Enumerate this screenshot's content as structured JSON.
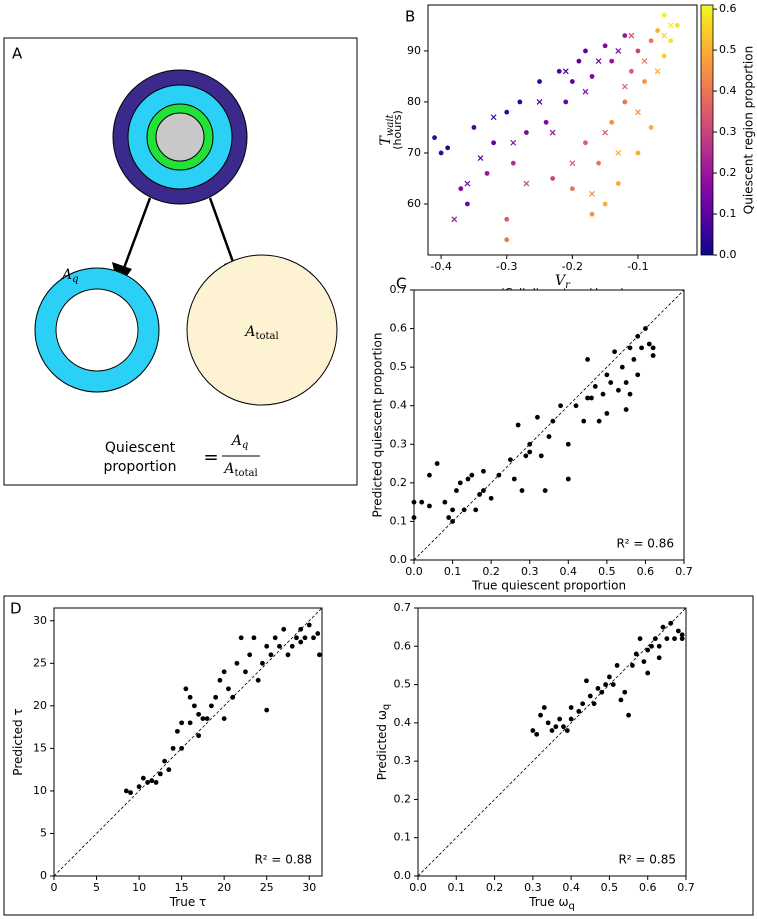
{
  "diagram": {
    "panel": "A",
    "aq": {
      "text": "A",
      "sub": "q"
    },
    "atotal": {
      "text": "A",
      "sub": "total"
    },
    "formula": {
      "line1": "Quiescent",
      "line2": "proportion",
      "equals": "=",
      "numerator": {
        "text": "A",
        "sub": "q"
      },
      "denominator": {
        "text": "A",
        "sub": "total"
      }
    }
  },
  "chart_data": [
    {
      "type": "scatter",
      "panel": "B",
      "xlabel": [
        {
          "text": "V",
          "sub": "r"
        },
        "(Cell diameters / hour)"
      ],
      "ylabel": [
        {
          "text": "T",
          "sub": "wait"
        },
        "(hours)"
      ],
      "xlim": [
        -0.42,
        -0.01
      ],
      "ylim": [
        50,
        99
      ],
      "xticks": [
        -0.4,
        -0.3,
        -0.2,
        -0.1
      ],
      "yticks": [
        60,
        70,
        80,
        90
      ],
      "colorbar": {
        "label": "Quiescent region proportion",
        "cmap": "plasma",
        "lim": [
          0,
          0.61
        ],
        "ticks": [
          {
            "value": 0,
            "label": "0.0"
          },
          0.1,
          0.2,
          0.3,
          0.4,
          0.5,
          0.6
        ]
      },
      "series": [
        {
          "marker": "o",
          "x": [
            -0.41,
            -0.4,
            -0.39,
            -0.37,
            -0.36,
            -0.35,
            -0.33,
            -0.32,
            -0.3,
            -0.3,
            -0.3,
            -0.29,
            -0.28,
            -0.27,
            -0.25,
            -0.24,
            -0.23,
            -0.22,
            -0.21,
            -0.2,
            -0.2,
            -0.19,
            -0.18,
            -0.17,
            -0.17,
            -0.16,
            -0.15,
            -0.15,
            -0.14,
            -0.13,
            -0.12,
            -0.12,
            -0.11,
            -0.1,
            -0.1,
            -0.09,
            -0.08,
            -0.08,
            -0.07,
            -0.06,
            -0.05,
            -0.04,
            -0.06,
            -0.14,
            -0.18
          ],
          "values": [
            73,
            70,
            71,
            63,
            60,
            75,
            66,
            72,
            78,
            57,
            53,
            68,
            80,
            74,
            84,
            76,
            65,
            86,
            80,
            84,
            63,
            88,
            90,
            58,
            85,
            68,
            91,
            60,
            88,
            64,
            93,
            80,
            86,
            70,
            90,
            84,
            92,
            75,
            94,
            97,
            92,
            95,
            89,
            76,
            72
          ],
          "color_values": [
            0.05,
            0.05,
            0.03,
            0.15,
            0.12,
            0.08,
            0.2,
            0.1,
            0.05,
            0.35,
            0.4,
            0.25,
            0.05,
            0.15,
            0.05,
            0.15,
            0.3,
            0.08,
            0.12,
            0.1,
            0.4,
            0.1,
            0.1,
            0.45,
            0.15,
            0.4,
            0.15,
            0.5,
            0.2,
            0.5,
            0.2,
            0.4,
            0.35,
            0.5,
            0.3,
            0.45,
            0.4,
            0.5,
            0.5,
            0.6,
            0.58,
            0.58,
            0.55,
            0.45,
            0.35
          ]
        },
        {
          "marker": "x",
          "x": [
            -0.38,
            -0.36,
            -0.34,
            -0.32,
            -0.29,
            -0.27,
            -0.25,
            -0.23,
            -0.21,
            -0.2,
            -0.18,
            -0.16,
            -0.15,
            -0.13,
            -0.12,
            -0.11,
            -0.1,
            -0.09,
            -0.07,
            -0.06,
            -0.05,
            -0.17,
            -0.13
          ],
          "values": [
            57,
            64,
            69,
            77,
            72,
            64,
            80,
            74,
            86,
            68,
            82,
            88,
            74,
            90,
            83,
            93,
            78,
            88,
            86,
            93,
            95,
            62,
            70
          ],
          "color_values": [
            0.2,
            0.15,
            0.1,
            0.05,
            0.15,
            0.3,
            0.08,
            0.2,
            0.05,
            0.35,
            0.15,
            0.1,
            0.35,
            0.15,
            0.35,
            0.3,
            0.45,
            0.4,
            0.5,
            0.55,
            0.6,
            0.45,
            0.5
          ]
        }
      ]
    },
    {
      "type": "scatter",
      "panel": "C",
      "diagonal": true,
      "xlabel": [
        "True quiescent proportion"
      ],
      "ylabel": [
        "Predicted quiescent proportion"
      ],
      "annotation": "R² = 0.86",
      "xlim": [
        0,
        0.7
      ],
      "ylim": [
        0,
        0.7
      ],
      "xticks": [
        {
          "value": 0,
          "label": "0.0"
        },
        0.1,
        0.2,
        0.3,
        0.4,
        0.5,
        0.6,
        0.7
      ],
      "yticks": [
        {
          "value": 0,
          "label": "0.0"
        },
        0.1,
        0.2,
        0.3,
        0.4,
        0.5,
        0.6,
        0.7
      ],
      "series": [
        {
          "marker": "o",
          "color": "#000000",
          "x": [
            0.0,
            0.0,
            0.02,
            0.04,
            0.04,
            0.06,
            0.08,
            0.09,
            0.1,
            0.1,
            0.11,
            0.12,
            0.13,
            0.14,
            0.15,
            0.16,
            0.17,
            0.18,
            0.18,
            0.2,
            0.22,
            0.25,
            0.26,
            0.27,
            0.28,
            0.29,
            0.3,
            0.3,
            0.32,
            0.33,
            0.34,
            0.35,
            0.36,
            0.38,
            0.4,
            0.4,
            0.42,
            0.44,
            0.45,
            0.45,
            0.46,
            0.47,
            0.48,
            0.49,
            0.5,
            0.5,
            0.51,
            0.52,
            0.53,
            0.54,
            0.55,
            0.55,
            0.56,
            0.57,
            0.58,
            0.59,
            0.6,
            0.61,
            0.62,
            0.62,
            0.58,
            0.56
          ],
          "values": [
            0.11,
            0.15,
            0.15,
            0.14,
            0.22,
            0.25,
            0.15,
            0.11,
            0.1,
            0.13,
            0.18,
            0.2,
            0.13,
            0.21,
            0.22,
            0.13,
            0.17,
            0.18,
            0.23,
            0.16,
            0.22,
            0.26,
            0.21,
            0.35,
            0.18,
            0.27,
            0.28,
            0.3,
            0.37,
            0.27,
            0.18,
            0.32,
            0.36,
            0.4,
            0.21,
            0.3,
            0.4,
            0.36,
            0.52,
            0.42,
            0.42,
            0.45,
            0.36,
            0.43,
            0.48,
            0.38,
            0.46,
            0.54,
            0.44,
            0.5,
            0.46,
            0.39,
            0.55,
            0.52,
            0.58,
            0.55,
            0.6,
            0.56,
            0.55,
            0.53,
            0.48,
            0.43
          ]
        }
      ]
    },
    {
      "type": "scatter",
      "panel": "D",
      "diagonal": true,
      "xlabel": [
        {
          "text": "True τ",
          "sub": ""
        }
      ],
      "ylabel": [
        {
          "text": "Predicted τ",
          "sub": ""
        }
      ],
      "annotation": "R² = 0.88",
      "xlim": [
        0,
        31.5
      ],
      "ylim": [
        0,
        31.5
      ],
      "xticks": [
        0,
        5,
        10,
        15,
        20,
        25,
        30
      ],
      "yticks": [
        0,
        5,
        10,
        15,
        20,
        25,
        30
      ],
      "series": [
        {
          "marker": "o",
          "color": "#000000",
          "x": [
            8.5,
            9,
            10,
            10.5,
            11,
            11.5,
            12,
            12.5,
            13,
            13.5,
            14,
            14.5,
            15,
            15,
            15.5,
            16,
            16,
            16.5,
            17,
            17,
            17.5,
            18,
            18.5,
            19,
            19.5,
            20,
            20,
            20.5,
            21,
            21.5,
            22,
            22.5,
            23,
            23.5,
            24,
            24.5,
            25,
            25,
            25.5,
            26,
            26.5,
            27,
            27.5,
            28,
            28.5,
            29,
            29,
            29.5,
            30,
            30.5,
            31,
            31.2
          ],
          "values": [
            10,
            9.8,
            10.5,
            11.5,
            11,
            11.2,
            11,
            12,
            13.5,
            12.5,
            15,
            17,
            15,
            18,
            22,
            18,
            21,
            20,
            19,
            16.5,
            18.5,
            18.5,
            20,
            21,
            23,
            18.5,
            24,
            22,
            21,
            25,
            28,
            24,
            26,
            28,
            23,
            25,
            27,
            19.5,
            26,
            28,
            27,
            29,
            26,
            27,
            28,
            27.5,
            29,
            28,
            29.5,
            28,
            28.5,
            26
          ]
        }
      ]
    },
    {
      "type": "scatter",
      "diagonal": true,
      "xlabel": [
        {
          "text": "True ω",
          "sub": "q"
        }
      ],
      "ylabel": [
        {
          "text": "Predicted ω",
          "sub": "q"
        }
      ],
      "annotation": "R² = 0.85",
      "xlim": [
        0,
        0.7
      ],
      "ylim": [
        0,
        0.7
      ],
      "xticks": [
        {
          "value": 0,
          "label": "0.0"
        },
        0.1,
        0.2,
        0.3,
        0.4,
        0.5,
        0.6,
        0.7
      ],
      "yticks": [
        {
          "value": 0,
          "label": "0.0"
        },
        0.1,
        0.2,
        0.3,
        0.4,
        0.5,
        0.6,
        0.7
      ],
      "series": [
        {
          "marker": "o",
          "color": "#000000",
          "x": [
            0.3,
            0.31,
            0.32,
            0.33,
            0.34,
            0.35,
            0.36,
            0.37,
            0.38,
            0.39,
            0.4,
            0.4,
            0.42,
            0.43,
            0.44,
            0.45,
            0.46,
            0.47,
            0.48,
            0.49,
            0.5,
            0.51,
            0.52,
            0.53,
            0.54,
            0.55,
            0.56,
            0.57,
            0.58,
            0.59,
            0.6,
            0.61,
            0.62,
            0.63,
            0.64,
            0.65,
            0.66,
            0.67,
            0.68,
            0.69,
            0.69,
            0.6,
            0.63
          ],
          "values": [
            0.38,
            0.37,
            0.42,
            0.44,
            0.4,
            0.38,
            0.39,
            0.41,
            0.39,
            0.38,
            0.41,
            0.44,
            0.43,
            0.45,
            0.51,
            0.47,
            0.45,
            0.49,
            0.48,
            0.5,
            0.52,
            0.5,
            0.55,
            0.46,
            0.48,
            0.42,
            0.55,
            0.58,
            0.62,
            0.56,
            0.59,
            0.6,
            0.62,
            0.6,
            0.65,
            0.62,
            0.66,
            0.62,
            0.64,
            0.62,
            0.63,
            0.53,
            0.57
          ]
        }
      ]
    }
  ]
}
